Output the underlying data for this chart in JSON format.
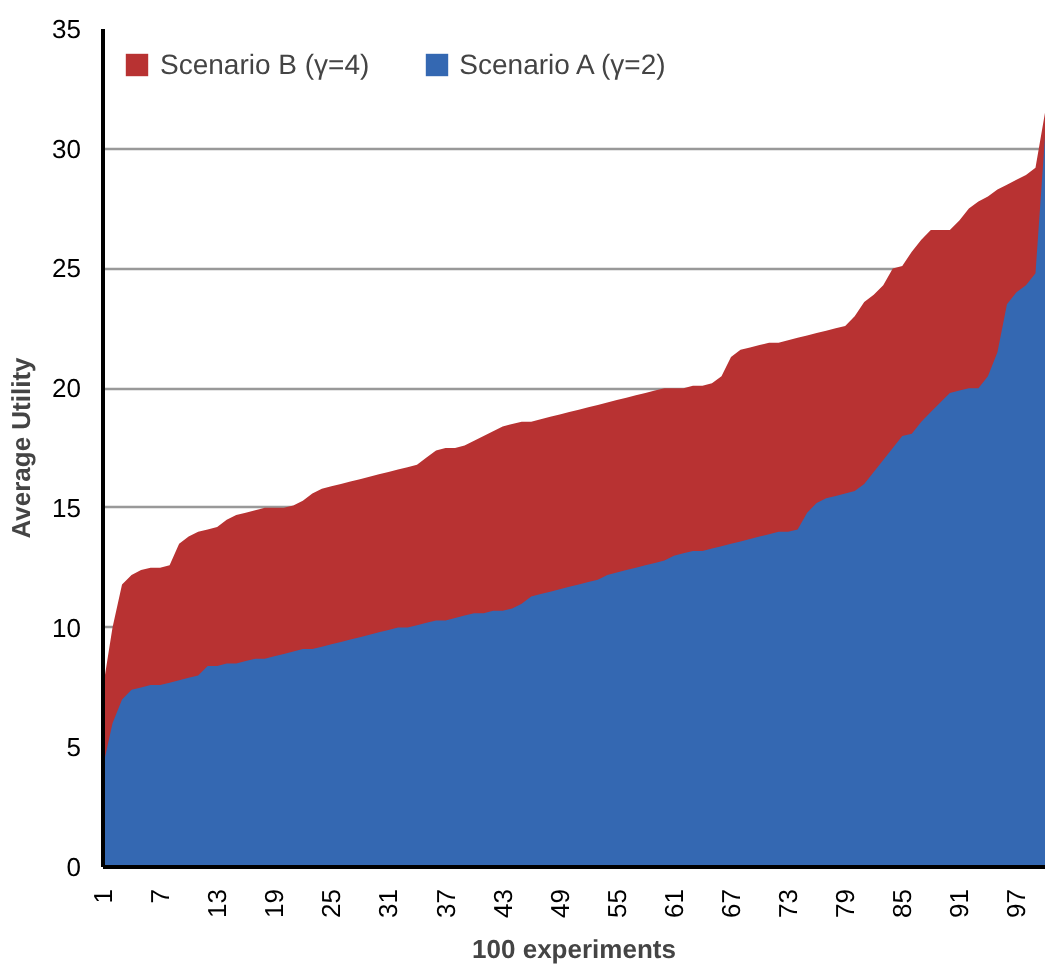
{
  "chart_data": {
    "type": "area",
    "xlabel": "100 experiments",
    "ylabel": "Average Utility",
    "categories": [
      "1",
      null,
      null,
      null,
      null,
      null,
      "7",
      null,
      null,
      null,
      null,
      null,
      "13",
      null,
      null,
      null,
      null,
      null,
      "19",
      null,
      null,
      null,
      null,
      null,
      "25",
      null,
      null,
      null,
      null,
      null,
      "31",
      null,
      null,
      null,
      null,
      null,
      "37",
      null,
      null,
      null,
      null,
      null,
      "43",
      null,
      null,
      null,
      null,
      null,
      "49",
      null,
      null,
      null,
      null,
      null,
      "55",
      null,
      null,
      null,
      null,
      null,
      "61",
      null,
      null,
      null,
      null,
      null,
      "67",
      null,
      null,
      null,
      null,
      null,
      "73",
      null,
      null,
      null,
      null,
      null,
      "79",
      null,
      null,
      null,
      null,
      null,
      "85",
      null,
      null,
      null,
      null,
      null,
      "91",
      null,
      null,
      null,
      null,
      null,
      "97",
      null,
      null,
      null
    ],
    "series": [
      {
        "name": "Scenario B (γ=4)",
        "color": "#b83232",
        "values": [
          7.5,
          10,
          11.8,
          12.2,
          12.4,
          12.5,
          12.5,
          12.6,
          13.5,
          13.8,
          14.0,
          14.1,
          14.2,
          14.5,
          14.7,
          14.8,
          14.9,
          15.0,
          15.0,
          15.0,
          15.1,
          15.3,
          15.6,
          15.8,
          15.9,
          16.0,
          16.1,
          16.2,
          16.3,
          16.4,
          16.5,
          16.6,
          16.7,
          16.8,
          17.1,
          17.4,
          17.5,
          17.5,
          17.6,
          17.8,
          18.0,
          18.2,
          18.4,
          18.5,
          18.6,
          18.6,
          18.7,
          18.8,
          18.9,
          19.0,
          19.1,
          19.2,
          19.3,
          19.4,
          19.5,
          19.6,
          19.7,
          19.8,
          19.9,
          20.0,
          20.0,
          20.0,
          20.1,
          20.1,
          20.2,
          20.5,
          21.3,
          21.6,
          21.7,
          21.8,
          21.9,
          21.9,
          22.0,
          22.1,
          22.2,
          22.3,
          22.4,
          22.5,
          22.6,
          23.0,
          23.6,
          23.9,
          24.3,
          25.0,
          25.1,
          25.7,
          26.2,
          26.6,
          26.6,
          26.6,
          27.0,
          27.5,
          27.8,
          28.0,
          28.3,
          28.5,
          28.7,
          28.9,
          29.2,
          31.5
        ]
      },
      {
        "name": "Scenario A (γ=2)",
        "color": "#3468b2",
        "values": [
          4.2,
          6.0,
          7.0,
          7.4,
          7.5,
          7.6,
          7.6,
          7.7,
          7.8,
          7.9,
          8.0,
          8.4,
          8.4,
          8.5,
          8.5,
          8.6,
          8.7,
          8.7,
          8.8,
          8.9,
          9.0,
          9.1,
          9.1,
          9.2,
          9.3,
          9.4,
          9.5,
          9.6,
          9.7,
          9.8,
          9.9,
          10.0,
          10.0,
          10.1,
          10.2,
          10.3,
          10.3,
          10.4,
          10.5,
          10.6,
          10.6,
          10.7,
          10.7,
          10.8,
          11.0,
          11.3,
          11.4,
          11.5,
          11.6,
          11.7,
          11.8,
          11.9,
          12.0,
          12.2,
          12.3,
          12.4,
          12.5,
          12.6,
          12.7,
          12.8,
          13.0,
          13.1,
          13.2,
          13.2,
          13.3,
          13.4,
          13.5,
          13.6,
          13.7,
          13.8,
          13.9,
          14.0,
          14.0,
          14.1,
          14.8,
          15.2,
          15.4,
          15.5,
          15.6,
          15.7,
          16.0,
          16.5,
          17.0,
          17.5,
          18.0,
          18.1,
          18.6,
          19.0,
          19.4,
          19.8,
          19.9,
          20.0,
          20.0,
          20.5,
          21.5,
          23.5,
          24.0,
          24.3,
          24.8,
          30.5
        ]
      }
    ],
    "ylim": [
      0,
      35
    ],
    "yticks": [
      0,
      5,
      10,
      15,
      20,
      25,
      30,
      35
    ],
    "grid": "y",
    "legend": "top left"
  }
}
